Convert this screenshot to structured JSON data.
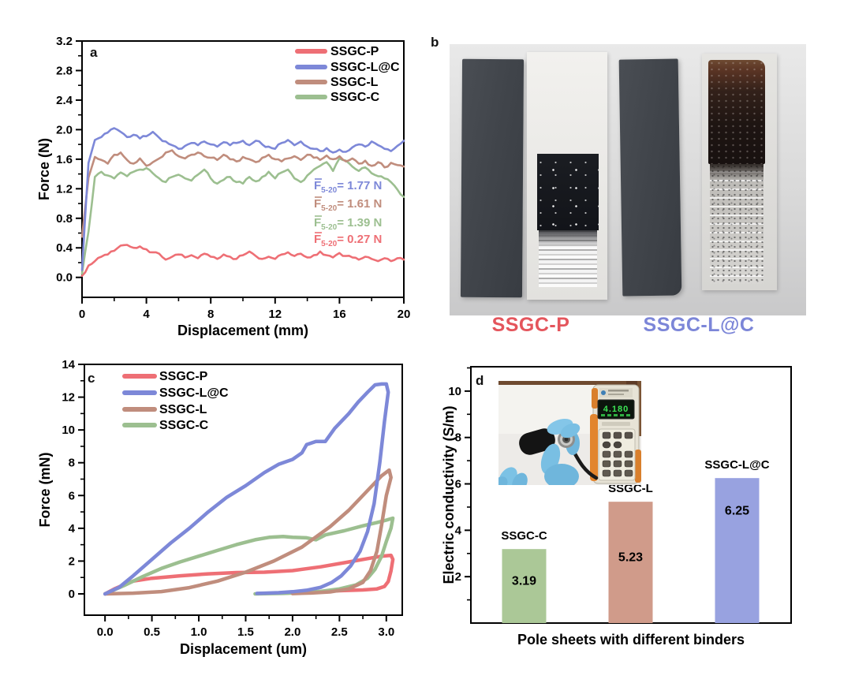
{
  "colors": {
    "red": "#ee6f75",
    "blue": "#7d88d8",
    "brown": "#c08d7d",
    "green": "#9cbf90",
    "bar_green": "#abc897",
    "bar_brown": "#d09b8a",
    "bar_blue": "#98a2e0",
    "caption_red": "#e4555c",
    "caption_blue": "#7c86d8",
    "axis": "#000000"
  },
  "panel_a": {
    "label": "a",
    "annotations": [
      {
        "sym": "F",
        "sub": "5-20",
        "text": "= 1.77 N",
        "color_key": "blue"
      },
      {
        "sym": "F",
        "sub": "5-20",
        "text": "= 1.61 N",
        "color_key": "brown"
      },
      {
        "sym": "F",
        "sub": "5-20",
        "text": "= 1.39 N",
        "color_key": "green"
      },
      {
        "sym": "F",
        "sub": "5-20",
        "text": "= 0.27 N",
        "color_key": "red"
      }
    ]
  },
  "panel_b": {
    "label": "b",
    "captions": [
      {
        "text": "SSGC-P",
        "color_key": "caption_red"
      },
      {
        "text": "SSGC-L@C",
        "color_key": "caption_blue"
      }
    ]
  },
  "panel_c": {
    "label": "c"
  },
  "panel_d": {
    "label": "d",
    "inset": {
      "display_reading": "4.180"
    }
  },
  "chart_data": [
    {
      "id": "a",
      "type": "line",
      "xlabel": "Displacement (mm)",
      "ylabel": "Force (N)",
      "xlim": [
        0,
        20
      ],
      "ylim": [
        -0.27,
        3.2
      ],
      "xticks": {
        "major": [
          0,
          4,
          8,
          12,
          16,
          20
        ],
        "minor": [
          2,
          6,
          10,
          14,
          18
        ]
      },
      "yticks": {
        "major": [
          0.0,
          0.4,
          0.8,
          1.2,
          1.6,
          2.0,
          2.4,
          2.8,
          3.2
        ],
        "minor": [
          0.2,
          0.6,
          1.0,
          1.4,
          1.8,
          2.2,
          2.6,
          3.0
        ]
      },
      "xtick_decimals": 0,
      "ytick_decimals": 1,
      "legend_position": "top-right",
      "grid": false,
      "x_start": 0,
      "x_step": 0.4,
      "series": [
        {
          "name": "SSGC-P",
          "color_key": "red",
          "values": [
            0.02,
            0.16,
            0.22,
            0.28,
            0.31,
            0.36,
            0.43,
            0.44,
            0.4,
            0.42,
            0.38,
            0.34,
            0.32,
            0.24,
            0.28,
            0.31,
            0.27,
            0.3,
            0.26,
            0.32,
            0.28,
            0.25,
            0.31,
            0.28,
            0.25,
            0.3,
            0.35,
            0.29,
            0.25,
            0.28,
            0.25,
            0.31,
            0.34,
            0.29,
            0.32,
            0.27,
            0.3,
            0.35,
            0.3,
            0.27,
            0.33,
            0.29,
            0.27,
            0.24,
            0.28,
            0.25,
            0.22,
            0.26,
            0.22,
            0.26,
            0.24
          ]
        },
        {
          "name": "SSGC-L@C",
          "color_key": "blue",
          "values": [
            0.1,
            1.55,
            1.86,
            1.9,
            1.96,
            2.02,
            1.97,
            1.9,
            1.93,
            1.88,
            1.91,
            1.97,
            1.89,
            1.84,
            1.79,
            1.74,
            1.78,
            1.82,
            1.79,
            1.84,
            1.8,
            1.77,
            1.83,
            1.79,
            1.82,
            1.85,
            1.79,
            1.85,
            1.8,
            1.77,
            1.74,
            1.82,
            1.86,
            1.79,
            1.84,
            1.77,
            1.74,
            1.71,
            1.75,
            1.69,
            1.73,
            1.7,
            1.76,
            1.8,
            1.77,
            1.84,
            1.79,
            1.74,
            1.71,
            1.78,
            1.85
          ]
        },
        {
          "name": "SSGC-L",
          "color_key": "brown",
          "values": [
            0.55,
            1.35,
            1.63,
            1.59,
            1.54,
            1.66,
            1.69,
            1.59,
            1.54,
            1.61,
            1.51,
            1.56,
            1.61,
            1.69,
            1.72,
            1.64,
            1.61,
            1.66,
            1.69,
            1.64,
            1.62,
            1.59,
            1.66,
            1.6,
            1.57,
            1.63,
            1.6,
            1.56,
            1.62,
            1.66,
            1.6,
            1.57,
            1.61,
            1.64,
            1.59,
            1.66,
            1.62,
            1.59,
            1.65,
            1.6,
            1.64,
            1.57,
            1.61,
            1.54,
            1.58,
            1.51,
            1.56,
            1.49,
            1.55,
            1.52,
            1.5
          ]
        },
        {
          "name": "SSGC-C",
          "color_key": "green",
          "values": [
            0.05,
            0.62,
            1.36,
            1.43,
            1.38,
            1.34,
            1.42,
            1.37,
            1.43,
            1.46,
            1.48,
            1.41,
            1.34,
            1.29,
            1.36,
            1.39,
            1.34,
            1.31,
            1.39,
            1.46,
            1.34,
            1.27,
            1.32,
            1.36,
            1.29,
            1.27,
            1.36,
            1.3,
            1.36,
            1.43,
            1.34,
            1.42,
            1.46,
            1.34,
            1.29,
            1.38,
            1.46,
            1.51,
            1.56,
            1.44,
            1.61,
            1.58,
            1.5,
            1.44,
            1.49,
            1.41,
            1.37,
            1.34,
            1.29,
            1.19,
            1.09
          ]
        }
      ],
      "draw_order": [
        0,
        3,
        2,
        1
      ],
      "annotations_values": [
        "1.77",
        "1.61",
        "1.39",
        "0.27"
      ]
    },
    {
      "id": "c",
      "type": "line",
      "xlabel": "Displacement (um)",
      "ylabel": "Force (mN)",
      "xlim": [
        -0.22,
        3.17
      ],
      "ylim": [
        -1.3,
        14
      ],
      "xticks": {
        "major": [
          0.0,
          0.5,
          1.0,
          1.5,
          2.0,
          2.5,
          3.0
        ],
        "minor": [
          0.25,
          0.75,
          1.25,
          1.75,
          2.25,
          2.75
        ]
      },
      "yticks": {
        "major": [
          0,
          2,
          4,
          6,
          8,
          10,
          12,
          14
        ],
        "minor": [
          1,
          3,
          5,
          7,
          9,
          11,
          13
        ]
      },
      "xtick_decimals": 1,
      "ytick_decimals": 0,
      "legend_position": "top-left",
      "grid": false,
      "series": [
        {
          "name": "SSGC-P",
          "color_key": "red",
          "points": [
            [
              0,
              0
            ],
            [
              0.1,
              0.3
            ],
            [
              0.2,
              0.55
            ],
            [
              0.3,
              0.78
            ],
            [
              0.5,
              0.95
            ],
            [
              0.8,
              1.1
            ],
            [
              1.1,
              1.22
            ],
            [
              1.4,
              1.3
            ],
            [
              1.7,
              1.32
            ],
            [
              2.0,
              1.42
            ],
            [
              2.3,
              1.65
            ],
            [
              2.6,
              1.95
            ],
            [
              2.8,
              2.15
            ],
            [
              2.95,
              2.3
            ],
            [
              3.05,
              2.35
            ],
            [
              3.07,
              2.1
            ],
            [
              3.05,
              1.4
            ],
            [
              3.02,
              0.75
            ],
            [
              2.98,
              0.45
            ],
            [
              2.9,
              0.3
            ],
            [
              2.75,
              0.24
            ],
            [
              2.55,
              0.2
            ],
            [
              2.35,
              0.16
            ],
            [
              2.15,
              0.11
            ],
            [
              2.0,
              0.07
            ],
            [
              1.92,
              0.04
            ]
          ]
        },
        {
          "name": "SSGC-L@C",
          "color_key": "blue",
          "points": [
            [
              0,
              0
            ],
            [
              0.15,
              0.4
            ],
            [
              0.3,
              1.1
            ],
            [
              0.5,
              2.1
            ],
            [
              0.7,
              3.1
            ],
            [
              0.9,
              4.0
            ],
            [
              1.1,
              5.0
            ],
            [
              1.3,
              5.9
            ],
            [
              1.5,
              6.6
            ],
            [
              1.7,
              7.4
            ],
            [
              1.85,
              7.9
            ],
            [
              2.0,
              8.2
            ],
            [
              2.1,
              8.6
            ],
            [
              2.15,
              9.1
            ],
            [
              2.25,
              9.3
            ],
            [
              2.35,
              9.3
            ],
            [
              2.45,
              10.1
            ],
            [
              2.6,
              11.0
            ],
            [
              2.7,
              11.7
            ],
            [
              2.8,
              12.3
            ],
            [
              2.88,
              12.75
            ],
            [
              2.95,
              12.8
            ],
            [
              3.0,
              12.8
            ],
            [
              3.02,
              12.3
            ],
            [
              2.98,
              10.5
            ],
            [
              2.93,
              8.0
            ],
            [
              2.87,
              5.5
            ],
            [
              2.8,
              3.8
            ],
            [
              2.72,
              2.6
            ],
            [
              2.62,
              1.7
            ],
            [
              2.52,
              1.1
            ],
            [
              2.42,
              0.7
            ],
            [
              2.3,
              0.4
            ],
            [
              2.15,
              0.22
            ],
            [
              2.0,
              0.13
            ],
            [
              1.85,
              0.07
            ],
            [
              1.7,
              0.04
            ],
            [
              1.62,
              0.03
            ]
          ]
        },
        {
          "name": "SSGC-L",
          "color_key": "brown",
          "points": [
            [
              0,
              0
            ],
            [
              0.3,
              0.04
            ],
            [
              0.6,
              0.14
            ],
            [
              0.9,
              0.38
            ],
            [
              1.2,
              0.78
            ],
            [
              1.5,
              1.32
            ],
            [
              1.8,
              2.0
            ],
            [
              2.1,
              2.85
            ],
            [
              2.4,
              4.1
            ],
            [
              2.6,
              5.1
            ],
            [
              2.8,
              6.3
            ],
            [
              2.95,
              7.2
            ],
            [
              3.03,
              7.55
            ],
            [
              3.05,
              7.1
            ],
            [
              3.0,
              6.0
            ],
            [
              2.95,
              4.2
            ],
            [
              2.9,
              2.6
            ],
            [
              2.83,
              1.4
            ],
            [
              2.75,
              0.7
            ],
            [
              2.6,
              0.3
            ],
            [
              2.4,
              0.12
            ],
            [
              2.2,
              0.05
            ],
            [
              2.0,
              0.02
            ]
          ]
        },
        {
          "name": "SSGC-C",
          "color_key": "green",
          "points": [
            [
              0,
              0
            ],
            [
              0.2,
              0.5
            ],
            [
              0.4,
              1.05
            ],
            [
              0.6,
              1.55
            ],
            [
              0.8,
              1.95
            ],
            [
              1.0,
              2.3
            ],
            [
              1.2,
              2.65
            ],
            [
              1.4,
              3.0
            ],
            [
              1.6,
              3.3
            ],
            [
              1.75,
              3.45
            ],
            [
              1.9,
              3.5
            ],
            [
              2.0,
              3.45
            ],
            [
              2.15,
              3.42
            ],
            [
              2.25,
              3.3
            ],
            [
              2.35,
              3.6
            ],
            [
              2.55,
              3.85
            ],
            [
              2.75,
              4.15
            ],
            [
              2.9,
              4.35
            ],
            [
              3.0,
              4.5
            ],
            [
              3.07,
              4.62
            ],
            [
              3.05,
              4.0
            ],
            [
              3.0,
              3.2
            ],
            [
              2.95,
              2.3
            ],
            [
              2.88,
              1.5
            ],
            [
              2.8,
              0.95
            ],
            [
              2.68,
              0.55
            ],
            [
              2.5,
              0.3
            ],
            [
              2.3,
              0.15
            ],
            [
              2.1,
              0.07
            ],
            [
              1.9,
              0.03
            ],
            [
              1.7,
              0.01
            ],
            [
              1.6,
              0.0
            ]
          ]
        }
      ],
      "draw_order": [
        0,
        3,
        2,
        1
      ]
    },
    {
      "id": "d",
      "type": "bar",
      "xlabel": "Pole sheets with different binders",
      "ylabel": "Electric conductivity (S/m)",
      "ylim": [
        0,
        11.05
      ],
      "yticks": {
        "major": [
          2,
          4,
          6,
          8,
          10
        ],
        "minor": [
          1,
          3,
          5,
          7,
          9,
          11
        ]
      },
      "ytick_decimals": 0,
      "categories": [
        "SSGC-C",
        "SSGC-L",
        "SSGC-L@C"
      ],
      "values": [
        3.19,
        5.23,
        6.25
      ],
      "value_labels": [
        "3.19",
        "5.23",
        "6.25"
      ],
      "bar_color_keys": [
        "bar_green",
        "bar_brown",
        "bar_blue"
      ],
      "value_label_frac": [
        0.42,
        0.45,
        0.22
      ],
      "grid": false,
      "legend_position": "none"
    }
  ]
}
